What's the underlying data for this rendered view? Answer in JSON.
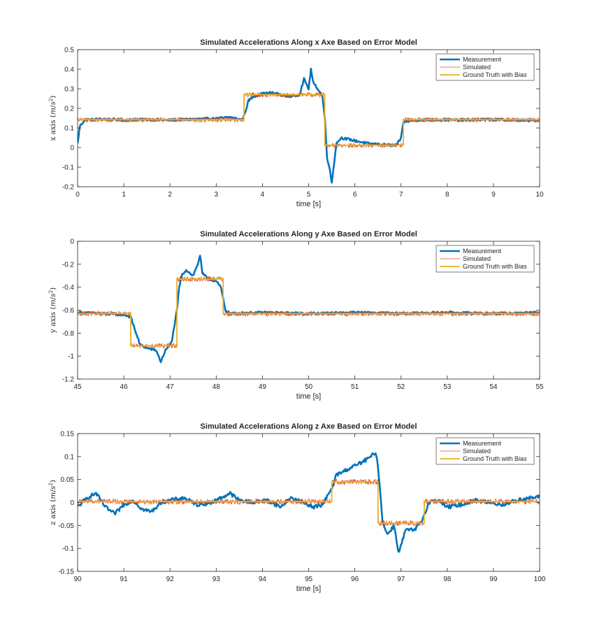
{
  "chart_data": [
    {
      "type": "line",
      "title": "Simulated Accelerations Along x Axe Based on Error Model",
      "xlabel": "time [s]",
      "ylabel": "x axis (m/s²)",
      "ylabel_parts": [
        "x axis (",
        "m",
        "/",
        "s",
        "2",
        ")"
      ],
      "xlim": [
        0,
        10
      ],
      "ylim": [
        -0.2,
        0.5
      ],
      "xticks": [
        0,
        1,
        2,
        3,
        4,
        5,
        6,
        7,
        8,
        9,
        10
      ],
      "yticks": [
        -0.2,
        -0.1,
        0,
        0.1,
        0.2,
        0.3,
        0.4,
        0.5
      ],
      "legend_location": "top-right",
      "ground_truth_levels": [
        {
          "x0": 0,
          "x1": 3.6,
          "y": 0.142
        },
        {
          "x0": 3.6,
          "x1": 5.35,
          "y": 0.27
        },
        {
          "x0": 5.35,
          "x1": 7.05,
          "y": 0.012
        },
        {
          "x0": 7.05,
          "x1": 10,
          "y": 0.142
        }
      ],
      "simulated_noise": 0.012,
      "measurement_points": [
        [
          0,
          0.02
        ],
        [
          0.05,
          0.11
        ],
        [
          0.15,
          0.14
        ],
        [
          0.5,
          0.145
        ],
        [
          1,
          0.14
        ],
        [
          1.5,
          0.143
        ],
        [
          2,
          0.14
        ],
        [
          2.5,
          0.145
        ],
        [
          3,
          0.148
        ],
        [
          3.3,
          0.155
        ],
        [
          3.55,
          0.142
        ],
        [
          3.6,
          0.16
        ],
        [
          3.7,
          0.24
        ],
        [
          3.8,
          0.26
        ],
        [
          4,
          0.275
        ],
        [
          4.2,
          0.28
        ],
        [
          4.4,
          0.27
        ],
        [
          4.6,
          0.26
        ],
        [
          4.8,
          0.27
        ],
        [
          4.9,
          0.35
        ],
        [
          5.0,
          0.3
        ],
        [
          5.05,
          0.4
        ],
        [
          5.1,
          0.33
        ],
        [
          5.2,
          0.3
        ],
        [
          5.3,
          0.26
        ],
        [
          5.35,
          0.15
        ],
        [
          5.4,
          -0.05
        ],
        [
          5.45,
          -0.1
        ],
        [
          5.5,
          -0.18
        ],
        [
          5.55,
          -0.08
        ],
        [
          5.6,
          0.02
        ],
        [
          5.7,
          0.05
        ],
        [
          5.9,
          0.04
        ],
        [
          6.1,
          0.03
        ],
        [
          6.3,
          0.02
        ],
        [
          6.6,
          0.015
        ],
        [
          6.9,
          0.01
        ],
        [
          7.0,
          0.05
        ],
        [
          7.05,
          0.13
        ],
        [
          7.3,
          0.14
        ],
        [
          7.8,
          0.142
        ],
        [
          8.3,
          0.14
        ],
        [
          8.8,
          0.143
        ],
        [
          9.3,
          0.141
        ],
        [
          9.8,
          0.138
        ],
        [
          10,
          0.14
        ]
      ],
      "measurement_noise": 0.006,
      "series": [
        {
          "name": "Measurement",
          "color": "#0072BD"
        },
        {
          "name": "Simulated",
          "color": "#D95319"
        },
        {
          "name": "Ground Truth with Bias",
          "color": "#EDB120"
        }
      ]
    },
    {
      "type": "line",
      "title": "Simulated Accelerations Along y Axe Based on Error Model",
      "xlabel": "time [s]",
      "ylabel": "y axis (m/s²)",
      "ylabel_parts": [
        "y axis (",
        "m",
        "/",
        "s",
        "2",
        ")"
      ],
      "xlim": [
        45,
        55
      ],
      "ylim": [
        -1.2,
        0
      ],
      "xticks": [
        45,
        46,
        47,
        48,
        49,
        50,
        51,
        52,
        53,
        54,
        55
      ],
      "yticks": [
        -1.2,
        -1,
        -0.8,
        -0.6,
        -0.4,
        -0.2,
        0
      ],
      "legend_location": "top-right",
      "ground_truth_levels": [
        {
          "x0": 45,
          "x1": 46.15,
          "y": -0.63
        },
        {
          "x0": 46.15,
          "x1": 47.15,
          "y": -0.91
        },
        {
          "x0": 47.15,
          "x1": 48.15,
          "y": -0.33
        },
        {
          "x0": 48.15,
          "x1": 55,
          "y": -0.63
        }
      ],
      "simulated_noise": 0.022,
      "measurement_points": [
        [
          45,
          -0.62
        ],
        [
          45.5,
          -0.63
        ],
        [
          46.0,
          -0.64
        ],
        [
          46.15,
          -0.66
        ],
        [
          46.25,
          -0.78
        ],
        [
          46.35,
          -0.9
        ],
        [
          46.5,
          -0.93
        ],
        [
          46.7,
          -0.95
        ],
        [
          46.8,
          -1.05
        ],
        [
          46.9,
          -0.95
        ],
        [
          47.0,
          -0.9
        ],
        [
          47.05,
          -0.85
        ],
        [
          47.15,
          -0.6
        ],
        [
          47.2,
          -0.4
        ],
        [
          47.25,
          -0.3
        ],
        [
          47.35,
          -0.25
        ],
        [
          47.5,
          -0.3
        ],
        [
          47.6,
          -0.2
        ],
        [
          47.65,
          -0.12
        ],
        [
          47.7,
          -0.28
        ],
        [
          47.8,
          -0.32
        ],
        [
          48.0,
          -0.35
        ],
        [
          48.1,
          -0.4
        ],
        [
          48.2,
          -0.6
        ],
        [
          48.3,
          -0.63
        ],
        [
          49,
          -0.62
        ],
        [
          50,
          -0.63
        ],
        [
          51,
          -0.62
        ],
        [
          52,
          -0.63
        ],
        [
          53,
          -0.62
        ],
        [
          54,
          -0.63
        ],
        [
          55,
          -0.62
        ]
      ],
      "measurement_noise": 0.01,
      "series": [
        {
          "name": "Measurement",
          "color": "#0072BD"
        },
        {
          "name": "Simulated",
          "color": "#D95319"
        },
        {
          "name": "Ground Truth with Bias",
          "color": "#EDB120"
        }
      ]
    },
    {
      "type": "line",
      "title": "Simulated Accelerations Along z Axe Based on Error Model",
      "xlabel": "time [s]",
      "ylabel": "z axis (m/s²)",
      "ylabel_parts": [
        "z axis (",
        "m",
        "/",
        "s",
        "2",
        ")"
      ],
      "xlim": [
        90,
        100
      ],
      "ylim": [
        -0.15,
        0.15
      ],
      "xticks": [
        90,
        91,
        92,
        93,
        94,
        95,
        96,
        97,
        98,
        99,
        100
      ],
      "yticks": [
        -0.15,
        -0.1,
        -0.05,
        0,
        0.05,
        0.1,
        0.15
      ],
      "legend_location": "top-right",
      "ground_truth_levels": [
        {
          "x0": 90,
          "x1": 95.5,
          "y": 0.002
        },
        {
          "x0": 95.5,
          "x1": 96.5,
          "y": 0.045
        },
        {
          "x0": 96.5,
          "x1": 97.5,
          "y": -0.045
        },
        {
          "x0": 97.5,
          "x1": 100,
          "y": 0.002
        }
      ],
      "simulated_noise": 0.006,
      "measurement_points": [
        [
          90,
          -0.01
        ],
        [
          90.2,
          0.01
        ],
        [
          90.4,
          0.02
        ],
        [
          90.6,
          -0.01
        ],
        [
          90.8,
          -0.025
        ],
        [
          91.0,
          -0.005
        ],
        [
          91.2,
          0.005
        ],
        [
          91.4,
          -0.015
        ],
        [
          91.6,
          -0.02
        ],
        [
          91.8,
          0.0
        ],
        [
          92.0,
          0.005
        ],
        [
          92.3,
          0.01
        ],
        [
          92.6,
          -0.005
        ],
        [
          92.9,
          0.0
        ],
        [
          93.1,
          0.01
        ],
        [
          93.3,
          0.02
        ],
        [
          93.5,
          0.005
        ],
        [
          93.8,
          0.0
        ],
        [
          94.1,
          0.005
        ],
        [
          94.4,
          -0.01
        ],
        [
          94.6,
          0.01
        ],
        [
          94.9,
          0.0
        ],
        [
          95.1,
          -0.01
        ],
        [
          95.3,
          -0.005
        ],
        [
          95.5,
          0.03
        ],
        [
          95.6,
          0.06
        ],
        [
          95.8,
          0.07
        ],
        [
          96.0,
          0.08
        ],
        [
          96.2,
          0.09
        ],
        [
          96.35,
          0.1
        ],
        [
          96.45,
          0.11
        ],
        [
          96.5,
          0.08
        ],
        [
          96.6,
          -0.04
        ],
        [
          96.7,
          -0.07
        ],
        [
          96.85,
          -0.05
        ],
        [
          96.95,
          -0.11
        ],
        [
          97.1,
          -0.06
        ],
        [
          97.3,
          -0.06
        ],
        [
          97.45,
          -0.04
        ],
        [
          97.6,
          0.0
        ],
        [
          97.8,
          0.005
        ],
        [
          98.0,
          -0.01
        ],
        [
          98.3,
          -0.005
        ],
        [
          98.6,
          0.005
        ],
        [
          98.9,
          0.0
        ],
        [
          99.2,
          -0.005
        ],
        [
          99.5,
          0.005
        ],
        [
          99.8,
          0.01
        ],
        [
          100,
          0.012
        ]
      ],
      "measurement_noise": 0.004,
      "series": [
        {
          "name": "Measurement",
          "color": "#0072BD"
        },
        {
          "name": "Simulated",
          "color": "#D95319"
        },
        {
          "name": "Ground Truth with Bias",
          "color": "#EDB120"
        }
      ]
    }
  ]
}
